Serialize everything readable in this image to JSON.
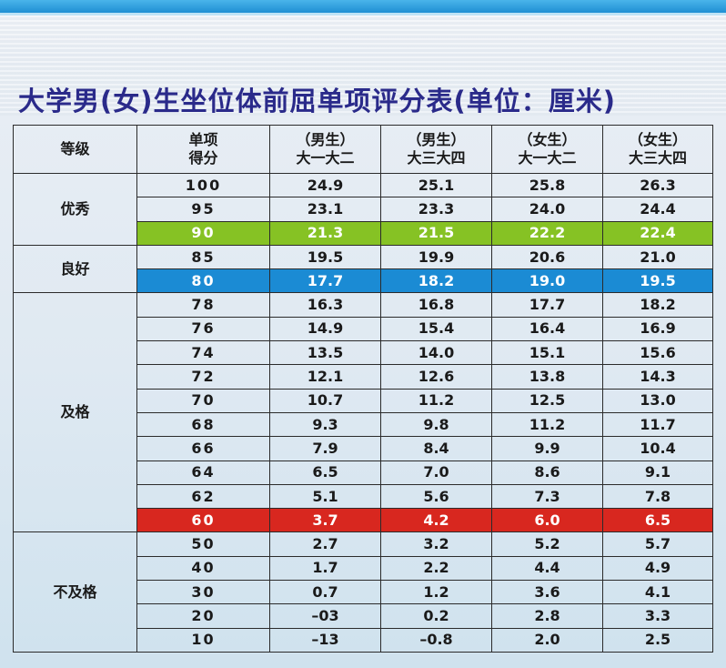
{
  "title": "大学男(女)生坐位体前屈单项评分表(单位：厘米)",
  "header": {
    "grade": "等级",
    "score_line1": "单项",
    "score_line2": "得分",
    "cols": [
      {
        "line1": "（男生）",
        "line2": "大一大二"
      },
      {
        "line1": "（男生）",
        "line2": "大三大四"
      },
      {
        "line1": "（女生）",
        "line2": "大一大二"
      },
      {
        "line1": "（女生）",
        "line2": "大三大四"
      }
    ]
  },
  "groups": [
    {
      "grade": "优秀",
      "rows": [
        {
          "score": "100",
          "vals": [
            "24.9",
            "25.1",
            "25.8",
            "26.3"
          ]
        },
        {
          "score": "95",
          "vals": [
            "23.1",
            "23.3",
            "24.0",
            "24.4"
          ]
        },
        {
          "score": "90",
          "vals": [
            "21.3",
            "21.5",
            "22.2",
            "22.4"
          ],
          "highlight": "green"
        }
      ]
    },
    {
      "grade": "良好",
      "rows": [
        {
          "score": "85",
          "vals": [
            "19.5",
            "19.9",
            "20.6",
            "21.0"
          ]
        },
        {
          "score": "80",
          "vals": [
            "17.7",
            "18.2",
            "19.0",
            "19.5"
          ],
          "highlight": "blue"
        }
      ]
    },
    {
      "grade": "及格",
      "rows": [
        {
          "score": "78",
          "vals": [
            "16.3",
            "16.8",
            "17.7",
            "18.2"
          ]
        },
        {
          "score": "76",
          "vals": [
            "14.9",
            "15.4",
            "16.4",
            "16.9"
          ]
        },
        {
          "score": "74",
          "vals": [
            "13.5",
            "14.0",
            "15.1",
            "15.6"
          ]
        },
        {
          "score": "72",
          "vals": [
            "12.1",
            "12.6",
            "13.8",
            "14.3"
          ]
        },
        {
          "score": "70",
          "vals": [
            "10.7",
            "11.2",
            "12.5",
            "13.0"
          ]
        },
        {
          "score": "68",
          "vals": [
            "9.3",
            "9.8",
            "11.2",
            "11.7"
          ]
        },
        {
          "score": "66",
          "vals": [
            "7.9",
            "8.4",
            "9.9",
            "10.4"
          ]
        },
        {
          "score": "64",
          "vals": [
            "6.5",
            "7.0",
            "8.6",
            "9.1"
          ]
        },
        {
          "score": "62",
          "vals": [
            "5.1",
            "5.6",
            "7.3",
            "7.8"
          ]
        },
        {
          "score": "60",
          "vals": [
            "3.7",
            "4.2",
            "6.0",
            "6.5"
          ],
          "highlight": "red"
        }
      ]
    },
    {
      "grade": "不及格",
      "rows": [
        {
          "score": "50",
          "vals": [
            "2.7",
            "3.2",
            "5.2",
            "5.7"
          ]
        },
        {
          "score": "40",
          "vals": [
            "1.7",
            "2.2",
            "4.4",
            "4.9"
          ]
        },
        {
          "score": "30",
          "vals": [
            "0.7",
            "1.2",
            "3.6",
            "4.1"
          ]
        },
        {
          "score": "20",
          "vals": [
            "–03",
            "0.2",
            "2.8",
            "3.3"
          ]
        },
        {
          "score": "10",
          "vals": [
            "–13",
            "–0.8",
            "2.0",
            "2.5"
          ]
        }
      ]
    }
  ]
}
